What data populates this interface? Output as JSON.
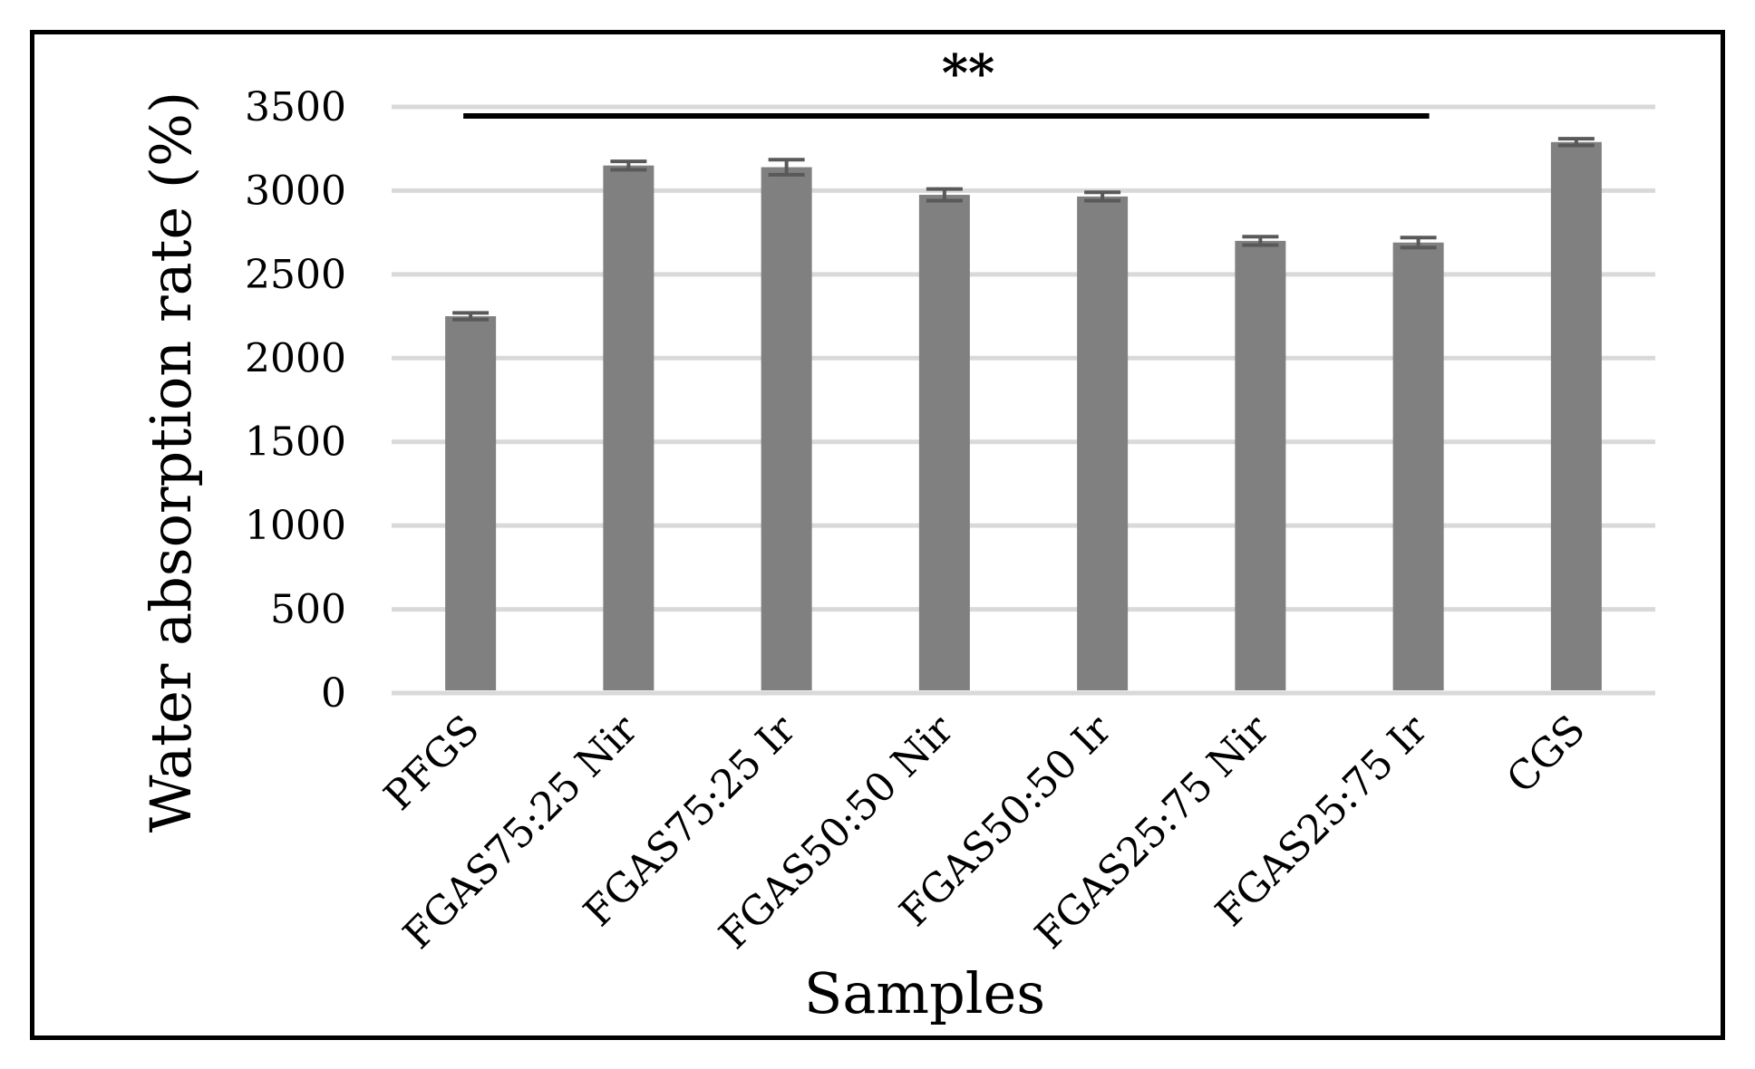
{
  "chart_data": {
    "type": "bar",
    "title": "",
    "xlabel": "Samples",
    "ylabel": "Water absorption rate (%)",
    "ylim": [
      0,
      3500
    ],
    "yticks": [
      0,
      500,
      1000,
      1500,
      2000,
      2500,
      3000,
      3500
    ],
    "grid": true,
    "categories": [
      "PFGS",
      "FGAS75:25 Nir",
      "FGAS75:25 Ir",
      "FGAS50:50 Nir",
      "FGAS50:50 Ir",
      "FGAS25:75 Nir",
      "FGAS25:75 Ir",
      "CGS"
    ],
    "values": [
      2250,
      3150,
      3140,
      2975,
      2965,
      2700,
      2690,
      3290
    ],
    "errors": [
      20,
      25,
      45,
      35,
      25,
      25,
      30,
      20
    ],
    "bar_color": "#808080",
    "error_color": "#595959",
    "grid_color": "#d9d9d9",
    "significance": {
      "label": "**",
      "from_category": 0,
      "to_category": 6
    }
  }
}
